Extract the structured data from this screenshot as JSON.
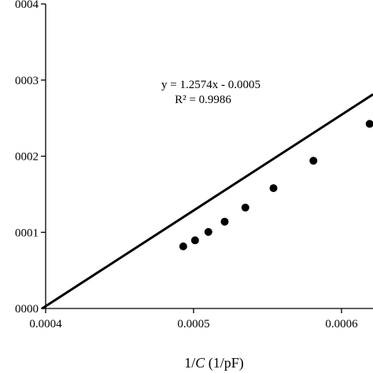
{
  "chart_data": {
    "type": "scatter",
    "title": "",
    "xlabel": "1/C (1/pF)",
    "xlabel_prefix": "1/",
    "xlabel_var": "C",
    "xlabel_suffix": " (1/pF)",
    "ylabel": "",
    "xlim": [
      0.0004,
      0.00065
    ],
    "ylim": [
      0,
      0.0004
    ],
    "x_ticks": [
      {
        "value": 0.0004,
        "label": "0.0004"
      },
      {
        "value": 0.0005,
        "label": "0.0005"
      },
      {
        "value": 0.0006,
        "label": "0.0006"
      }
    ],
    "y_ticks": [
      {
        "value": 0,
        "label": "0000"
      },
      {
        "value": 0.0001,
        "label": "0001"
      },
      {
        "value": 0.0002,
        "label": "0002"
      },
      {
        "value": 0.0003,
        "label": "0003"
      },
      {
        "value": 0.0004,
        "label": "0004"
      }
    ],
    "grid": false,
    "legend": "none",
    "series": [
      {
        "x": [
          0.000493,
          0.000501,
          0.00051,
          0.000521,
          0.000535,
          0.000554,
          0.000581,
          0.000619
        ],
        "y": [
          8.15e-05,
          8.95e-05,
          0.0001005,
          0.000114,
          0.0001325,
          0.000158,
          0.000194,
          0.0002425
        ],
        "color": "#000000"
      }
    ],
    "trendline": {
      "slope": 1.2574,
      "intercept": -0.0005,
      "equation": "y = 1.2574x - 0.0005",
      "r_squared": "R² = 0.9986",
      "color": "#000000"
    }
  }
}
